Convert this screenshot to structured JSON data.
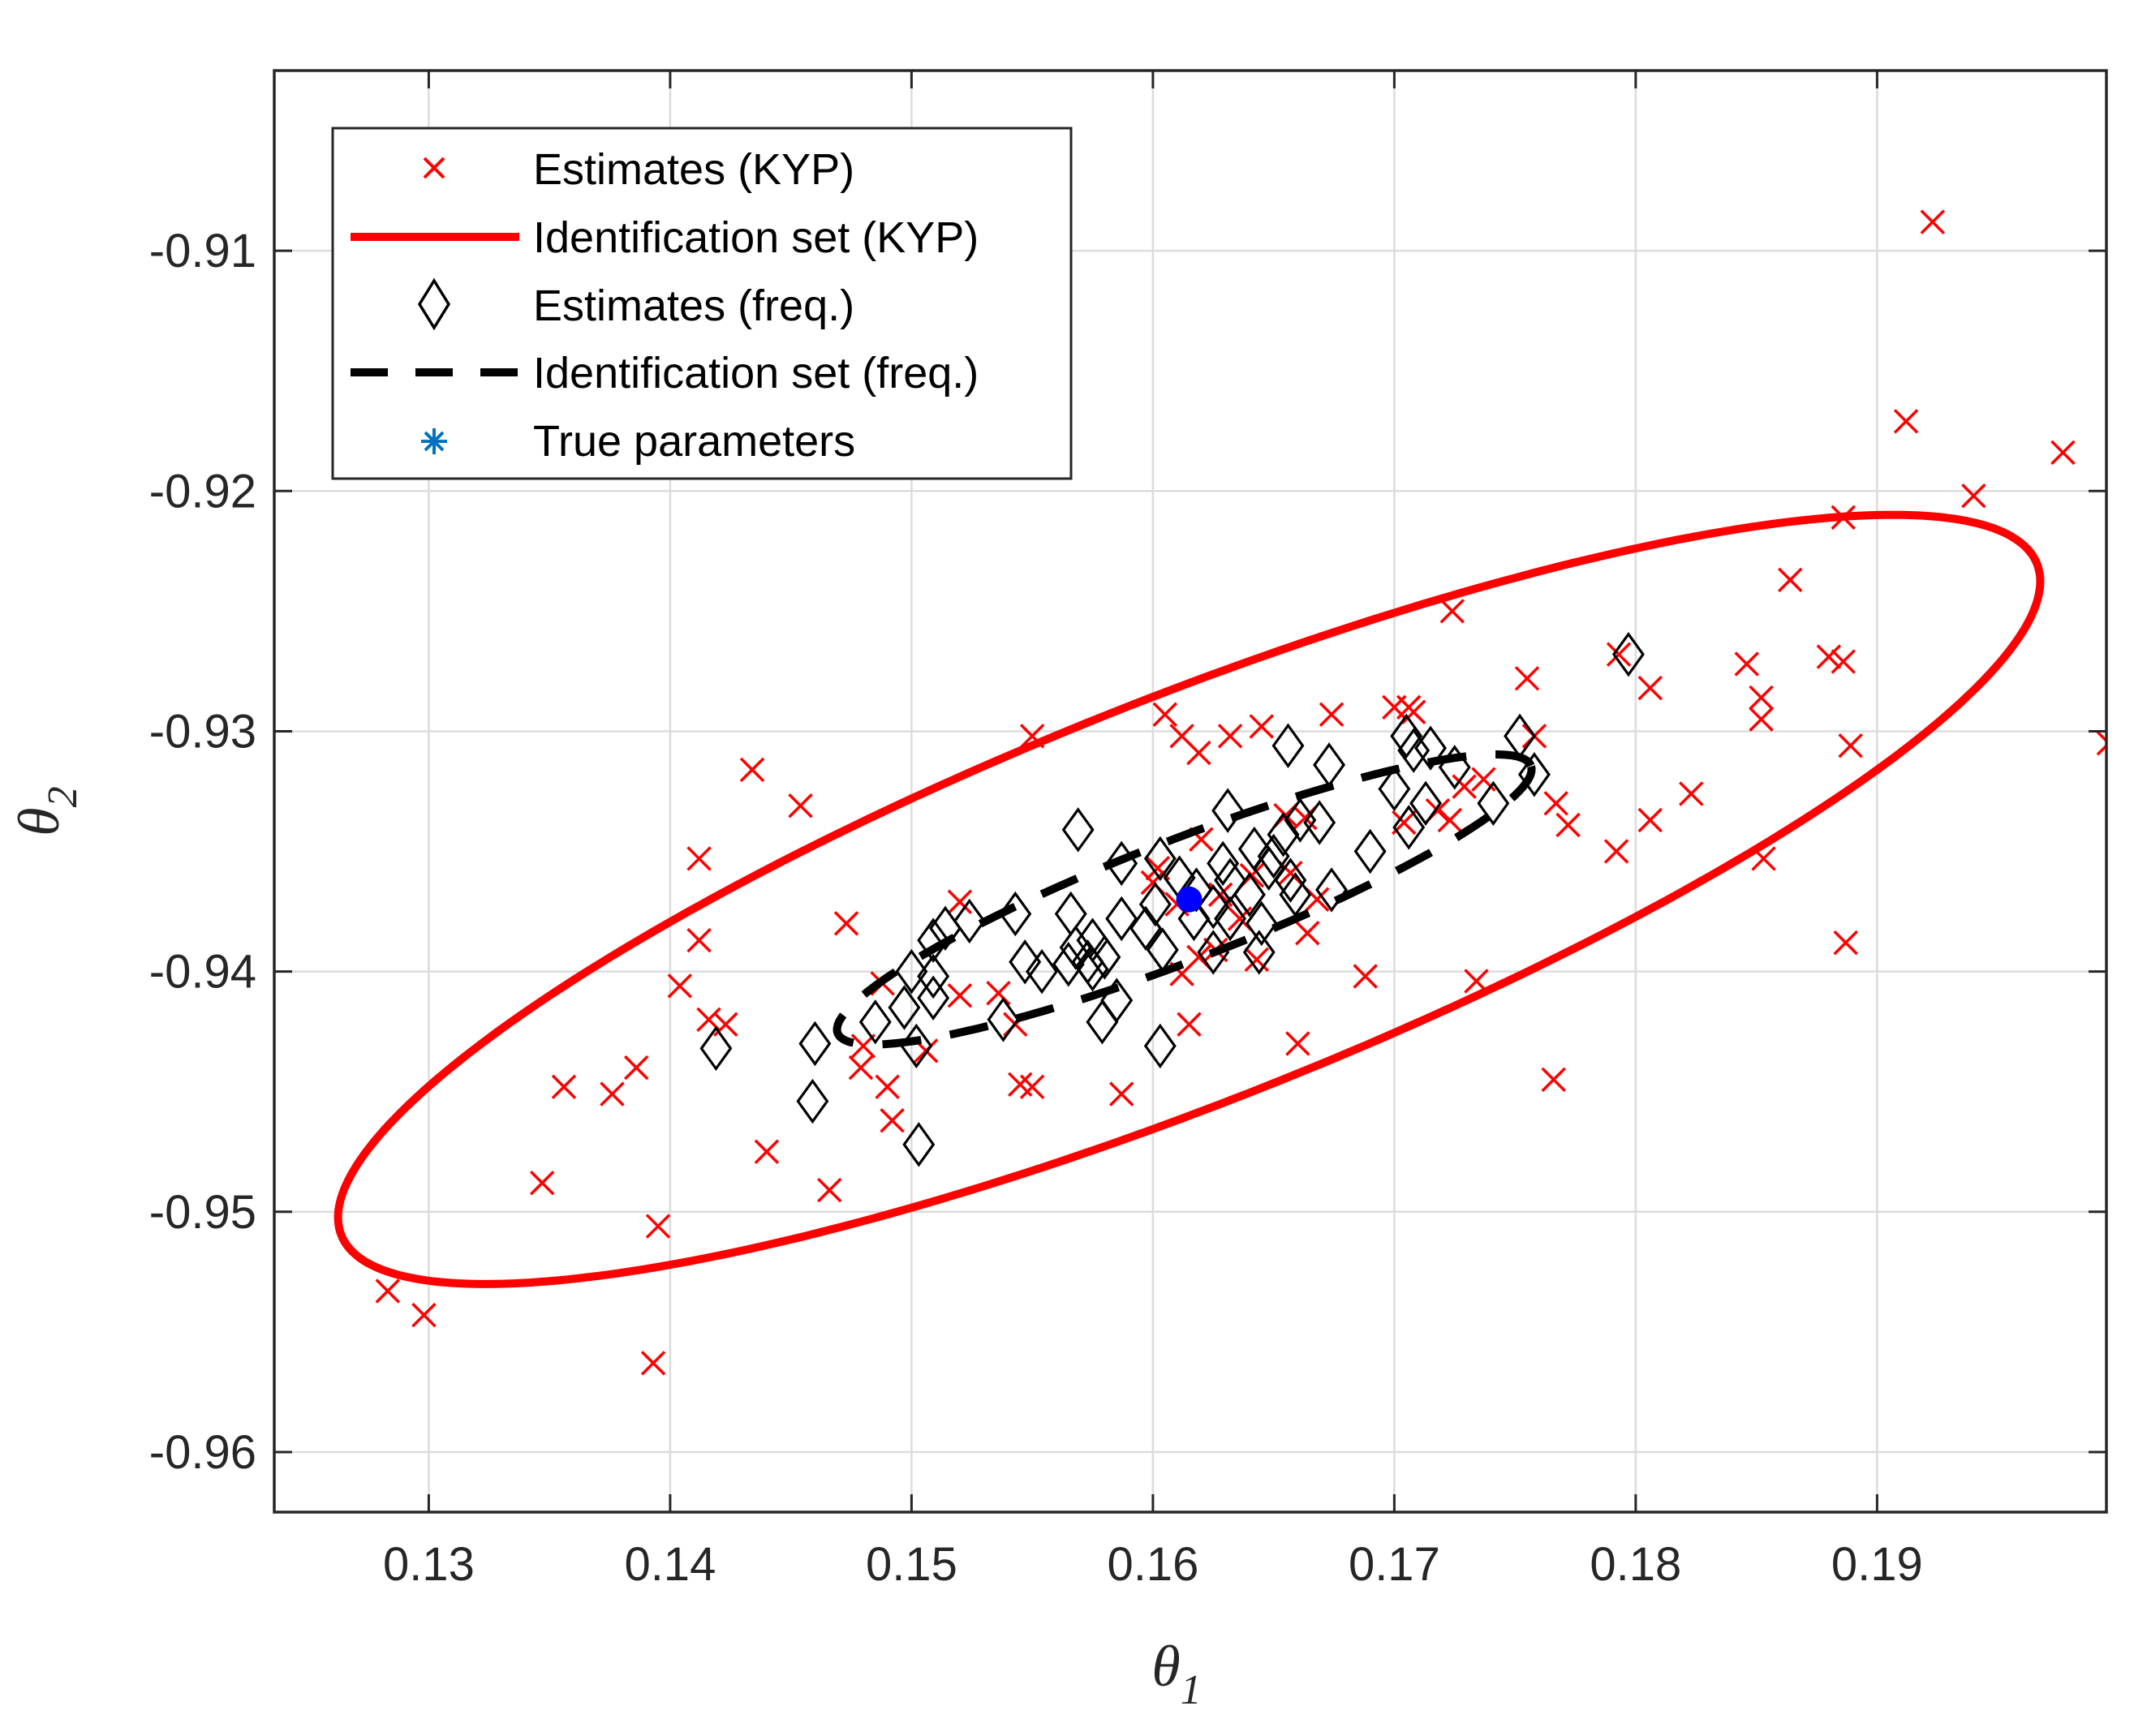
{
  "chart_data": {
    "type": "scatter",
    "title": "",
    "xlabel": "θ",
    "xlabel_sub": "1",
    "ylabel": "θ",
    "ylabel_sub": "2",
    "xlim": [
      0.1236,
      0.1995
    ],
    "ylim": [
      -0.9625,
      -0.9025
    ],
    "xticks": [
      0.13,
      0.14,
      0.15,
      0.16,
      0.17,
      0.18,
      0.19
    ],
    "xtick_labels": [
      "0.13",
      "0.14",
      "0.15",
      "0.16",
      "0.17",
      "0.18",
      "0.19"
    ],
    "yticks": [
      -0.91,
      -0.92,
      -0.93,
      -0.94,
      -0.95,
      -0.96
    ],
    "ytick_labels": [
      "-0.91",
      "-0.92",
      "-0.93",
      "-0.94",
      "-0.95",
      "-0.96"
    ],
    "grid": true,
    "legend_position": "top-left",
    "legend": [
      {
        "label": "Estimates (KYP)",
        "style": "red-x-marker"
      },
      {
        "label": "Identification set (KYP)",
        "style": "red-solid-line"
      },
      {
        "label": "Estimates (freq.)",
        "style": "black-diamond-marker"
      },
      {
        "label": "Identification set (freq.)",
        "style": "black-dashed-line"
      },
      {
        "label": "True parameters",
        "style": "blue-asterisk-marker"
      }
    ],
    "colors": {
      "kyp": "#ff0000",
      "freq": "#000000",
      "true": "#0000ff",
      "legend_true": "#0072bd",
      "grid": "#dcdcdc"
    },
    "ellipse_kyp": {
      "center": [
        0.1615,
        -0.937
      ],
      "semi_axis_major": 0.0378,
      "semi_axis_minor": 0.0084,
      "angle_deg": 21.7
    },
    "ellipse_freq": {
      "center": [
        0.1613,
        -0.937
      ],
      "semi_axis_major": 0.0154,
      "semi_axis_minor": 0.0025,
      "angle_deg": 21.2
    },
    "series": [
      {
        "name": "Estimates (KYP)",
        "marker": "x",
        "points": [
          [
            0.1923,
            -0.9088
          ],
          [
            0.1912,
            -0.9171
          ],
          [
            0.1977,
            -0.9184
          ],
          [
            0.194,
            -0.9202
          ],
          [
            0.1886,
            -0.9211
          ],
          [
            0.1864,
            -0.9237
          ],
          [
            0.1724,
            -0.925
          ],
          [
            0.188,
            -0.9269
          ],
          [
            0.1886,
            -0.9271
          ],
          [
            0.1846,
            -0.9272
          ],
          [
            0.1793,
            -0.9268
          ],
          [
            0.1755,
            -0.9278
          ],
          [
            0.1806,
            -0.9282
          ],
          [
            0.1852,
            -0.9286
          ],
          [
            0.1852,
            -0.9295
          ],
          [
            0.1706,
            -0.929
          ],
          [
            0.17,
            -0.929
          ],
          [
            0.1605,
            -0.9293
          ],
          [
            0.1674,
            -0.9293
          ],
          [
            0.1708,
            -0.9292
          ],
          [
            0.1996,
            -0.9305
          ],
          [
            0.1889,
            -0.9306
          ],
          [
            0.1612,
            -0.9302
          ],
          [
            0.1632,
            -0.9302
          ],
          [
            0.1645,
            -0.9298
          ],
          [
            0.155,
            -0.9302
          ],
          [
            0.1758,
            -0.9302
          ],
          [
            0.1619,
            -0.9309
          ],
          [
            0.1434,
            -0.9316
          ],
          [
            0.1737,
            -0.932
          ],
          [
            0.1729,
            -0.9323
          ],
          [
            0.1823,
            -0.9326
          ],
          [
            0.1718,
            -0.9333
          ],
          [
            0.1767,
            -0.933
          ],
          [
            0.1454,
            -0.9331
          ],
          [
            0.1655,
            -0.9335
          ],
          [
            0.1663,
            -0.9336
          ],
          [
            0.1806,
            -0.9337
          ],
          [
            0.1723,
            -0.9337
          ],
          [
            0.1772,
            -0.9339
          ],
          [
            0.1704,
            -0.9338
          ],
          [
            0.162,
            -0.9345
          ],
          [
            0.1792,
            -0.935
          ],
          [
            0.1853,
            -0.9353
          ],
          [
            0.1412,
            -0.9353
          ],
          [
            0.1657,
            -0.9359
          ],
          [
            0.1602,
            -0.9357
          ],
          [
            0.1641,
            -0.936
          ],
          [
            0.16,
            -0.9363
          ],
          [
            0.1628,
            -0.9368
          ],
          [
            0.152,
            -0.9371
          ],
          [
            0.1668,
            -0.937
          ],
          [
            0.161,
            -0.9372
          ],
          [
            0.1636,
            -0.9378
          ],
          [
            0.1473,
            -0.938
          ],
          [
            0.1664,
            -0.9384
          ],
          [
            0.1412,
            -0.9387
          ],
          [
            0.1887,
            -0.9388
          ],
          [
            0.1626,
            -0.9391
          ],
          [
            0.1619,
            -0.9394
          ],
          [
            0.1643,
            -0.9395
          ],
          [
            0.1612,
            -0.9401
          ],
          [
            0.1688,
            -0.9402
          ],
          [
            0.1734,
            -0.9404
          ],
          [
            0.1404,
            -0.9406
          ],
          [
            0.1488,
            -0.9405
          ],
          [
            0.152,
            -0.941
          ],
          [
            0.1536,
            -0.9409
          ],
          [
            0.1416,
            -0.942
          ],
          [
            0.1423,
            -0.9422
          ],
          [
            0.1615,
            -0.9422
          ],
          [
            0.1543,
            -0.9422
          ],
          [
            0.166,
            -0.943
          ],
          [
            0.148,
            -0.9431
          ],
          [
            0.1506,
            -0.9433
          ],
          [
            0.1479,
            -0.944
          ],
          [
            0.1386,
            -0.944
          ],
          [
            0.149,
            -0.9448
          ],
          [
            0.1356,
            -0.9448
          ],
          [
            0.1766,
            -0.9445
          ],
          [
            0.1545,
            -0.9447
          ],
          [
            0.155,
            -0.9448
          ],
          [
            0.1376,
            -0.9451
          ],
          [
            0.1587,
            -0.9451
          ],
          [
            0.1492,
            -0.9462
          ],
          [
            0.144,
            -0.9475
          ],
          [
            0.1347,
            -0.9488
          ],
          [
            0.1466,
            -0.9491
          ],
          [
            0.1395,
            -0.9506
          ],
          [
            0.1283,
            -0.9533
          ],
          [
            0.1298,
            -0.9543
          ],
          [
            0.1393,
            -0.9563
          ]
        ]
      },
      {
        "name": "Estimates (freq.)",
        "marker": "diamond",
        "points": [
          [
            0.1797,
            -0.9268
          ],
          [
            0.1705,
            -0.9302
          ],
          [
            0.1708,
            -0.9308
          ],
          [
            0.1715,
            -0.9307
          ],
          [
            0.1752,
            -0.9302
          ],
          [
            0.1656,
            -0.9306
          ],
          [
            0.1725,
            -0.9315
          ],
          [
            0.1758,
            -0.9318
          ],
          [
            0.1673,
            -0.9314
          ],
          [
            0.17,
            -0.9324
          ],
          [
            0.1713,
            -0.933
          ],
          [
            0.1741,
            -0.933
          ],
          [
            0.1706,
            -0.934
          ],
          [
            0.1661,
            -0.9337
          ],
          [
            0.1669,
            -0.9338
          ],
          [
            0.1631,
            -0.9333
          ],
          [
            0.1654,
            -0.9343
          ],
          [
            0.1569,
            -0.9341
          ],
          [
            0.1642,
            -0.9349
          ],
          [
            0.165,
            -0.9352
          ],
          [
            0.169,
            -0.935
          ],
          [
            0.1648,
            -0.9357
          ],
          [
            0.1629,
            -0.9355
          ],
          [
            0.1603,
            -0.9353
          ],
          [
            0.1587,
            -0.9355
          ],
          [
            0.1611,
            -0.9361
          ],
          [
            0.1632,
            -0.9362
          ],
          [
            0.1657,
            -0.9362
          ],
          [
            0.1674,
            -0.9366
          ],
          [
            0.1659,
            -0.9368
          ],
          [
            0.1618,
            -0.9366
          ],
          [
            0.164,
            -0.9368
          ],
          [
            0.1625,
            -0.9373
          ],
          [
            0.1601,
            -0.9372
          ],
          [
            0.1632,
            -0.9378
          ],
          [
            0.1566,
            -0.9376
          ],
          [
            0.1587,
            -0.9378
          ],
          [
            0.1617,
            -0.9378
          ],
          [
            0.1524,
            -0.9379
          ],
          [
            0.1543,
            -0.9376
          ],
          [
            0.1514,
            -0.9382
          ],
          [
            0.1597,
            -0.9382
          ],
          [
            0.1645,
            -0.938
          ],
          [
            0.1509,
            -0.9387
          ],
          [
            0.1575,
            -0.9387
          ],
          [
            0.1568,
            -0.939
          ],
          [
            0.1604,
            -0.9391
          ],
          [
            0.1625,
            -0.9392
          ],
          [
            0.1644,
            -0.9392
          ],
          [
            0.1573,
            -0.9396
          ],
          [
            0.1547,
            -0.9396
          ],
          [
            0.158,
            -0.9394
          ],
          [
            0.1565,
            -0.9397
          ],
          [
            0.1554,
            -0.94
          ],
          [
            0.15,
            -0.94
          ],
          [
            0.1509,
            -0.9402
          ],
          [
            0.1575,
            -0.9399
          ],
          [
            0.1509,
            -0.9411
          ],
          [
            0.1497,
            -0.9415
          ],
          [
            0.1585,
            -0.9412
          ],
          [
            0.1538,
            -0.942
          ],
          [
            0.1579,
            -0.9421
          ],
          [
            0.1485,
            -0.9421
          ],
          [
            0.1502,
            -0.9431
          ],
          [
            0.1603,
            -0.9431
          ],
          [
            0.146,
            -0.943
          ],
          [
            0.1419,
            -0.9432
          ],
          [
            0.1459,
            -0.9454
          ],
          [
            0.1503,
            -0.9472
          ]
        ]
      },
      {
        "name": "True parameters",
        "marker": "asterisk",
        "points": [
          [
            0.1615,
            -0.937
          ]
        ]
      }
    ]
  }
}
